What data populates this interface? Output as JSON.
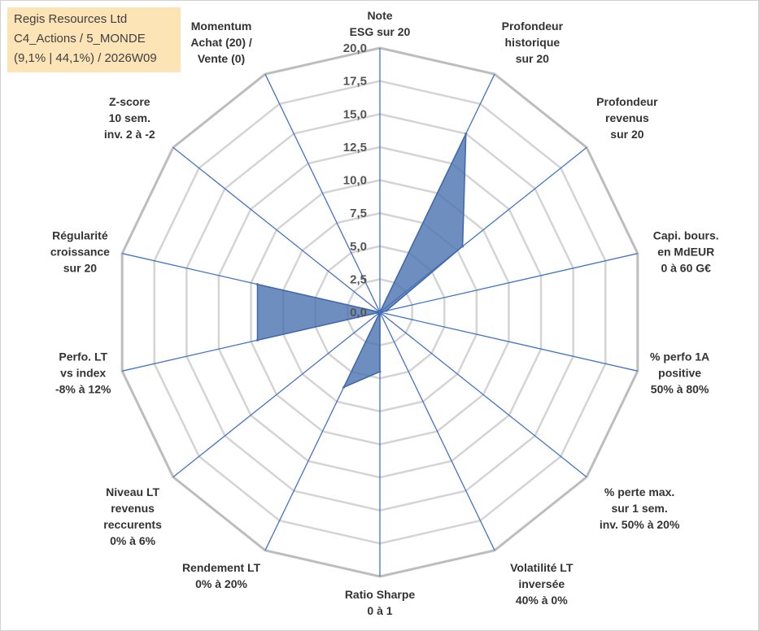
{
  "info": {
    "company": "Regis Resources Ltd",
    "category": "C4_Actions / 5_MONDE",
    "stats": "(9,1% | 44,1%) / 2026W09"
  },
  "chart_data": {
    "type": "radar",
    "rmin": 0,
    "rmax": 20,
    "tick_labels": [
      "0,0",
      "2,5",
      "5,0",
      "7,5",
      "10,0",
      "12,5",
      "15,0",
      "17,5",
      "20,0"
    ],
    "axes": [
      [
        "Note",
        "ESG sur 20"
      ],
      [
        "Profondeur",
        "historique",
        "sur 20"
      ],
      [
        "Profondeur",
        "revenus",
        "sur 20"
      ],
      [
        "Capi. bours.",
        "en MdEUR",
        "0 à 60 G€"
      ],
      [
        "% perfo 1A",
        "positive",
        "50% à 80%"
      ],
      [
        "% perte max.",
        "sur 1 sem.",
        "inv. 50% à 20%"
      ],
      [
        "Volatilité LT",
        "inversée",
        "40% à 0%"
      ],
      [
        "Ratio Sharpe",
        "0 à 1"
      ],
      [
        "Rendement LT",
        "0% à 20%"
      ],
      [
        "Niveau LT",
        "revenus",
        "reccurents",
        "0% à 6%"
      ],
      [
        "Perfo. LT",
        "vs index",
        "-8% à 12%"
      ],
      [
        "Régularité",
        "croissance",
        "sur 20"
      ],
      [
        "Z-score",
        "10 sem.",
        "inv. 2 à -2"
      ],
      [
        "Momentum",
        "Achat (20) /",
        "Vente (0)"
      ]
    ],
    "series": [
      {
        "values": [
          0,
          15,
          8,
          0.5,
          0,
          0,
          0,
          4.5,
          6.3,
          0,
          9.5,
          9.5,
          0,
          0
        ],
        "color": "#4a72b0"
      }
    ],
    "grid": true
  }
}
